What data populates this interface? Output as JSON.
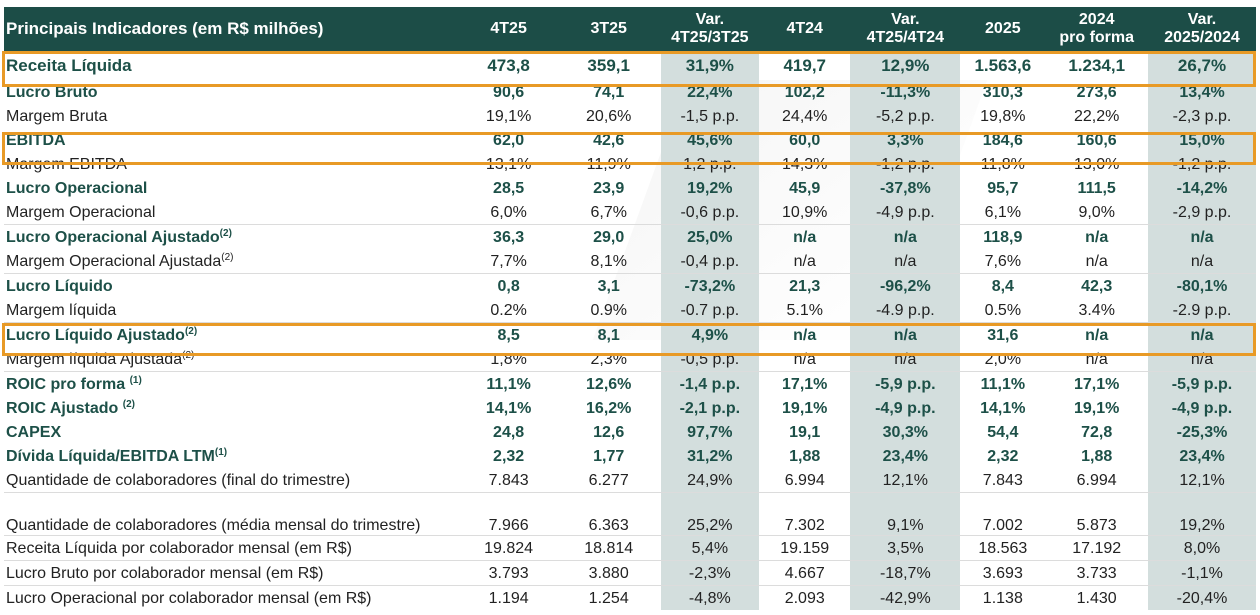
{
  "table": {
    "headers": [
      {
        "line1": "Principais Indicadores (em R$ milhões)",
        "line2": ""
      },
      {
        "line1": "4T25",
        "line2": ""
      },
      {
        "line1": "3T25",
        "line2": ""
      },
      {
        "line1": "Var.",
        "line2": "4T25/3T25"
      },
      {
        "line1": "4T24",
        "line2": ""
      },
      {
        "line1": "Var.",
        "line2": "4T25/4T24"
      },
      {
        "line1": "2025",
        "line2": ""
      },
      {
        "line1": "2024",
        "line2": "pro forma"
      },
      {
        "line1": "Var.",
        "line2": "2025/2024"
      }
    ],
    "rows": [
      {
        "label": "Receita Líquida",
        "sup": "",
        "values": [
          "473,8",
          "359,1",
          "31,9%",
          "419,7",
          "12,9%",
          "1.563,6",
          "1.234,1",
          "26,7%"
        ]
      },
      {
        "label": "Lucro Bruto",
        "sup": "",
        "values": [
          "90,6",
          "74,1",
          "22,4%",
          "102,2",
          "-11,3%",
          "310,3",
          "273,6",
          "13,4%"
        ]
      },
      {
        "label": "Margem Bruta",
        "sup": "",
        "values": [
          "19,1%",
          "20,6%",
          "-1,5 p.p.",
          "24,4%",
          "-5,2 p.p.",
          "19,8%",
          "22,2%",
          "-2,3 p.p."
        ]
      },
      {
        "label": "EBITDA",
        "sup": "",
        "values": [
          "62,0",
          "42,6",
          "45,6%",
          "60,0",
          "3,3%",
          "184,6",
          "160,6",
          "15,0%"
        ]
      },
      {
        "label": "Margem EBITDA",
        "sup": "",
        "values": [
          "13,1%",
          "11,9%",
          "1,2 p.p.",
          "14,3%",
          "-1,2 p.p.",
          "11,8%",
          "13,0%",
          "-1,2 p.p."
        ]
      },
      {
        "label": "Lucro Operacional",
        "sup": "",
        "values": [
          "28,5",
          "23,9",
          "19,2%",
          "45,9",
          "-37,8%",
          "95,7",
          "111,5",
          "-14,2%"
        ]
      },
      {
        "label": "Margem Operacional",
        "sup": "",
        "values": [
          "6,0%",
          "6,7%",
          "-0,6 p.p.",
          "10,9%",
          "-4,9 p.p.",
          "6,1%",
          "9,0%",
          "-2,9 p.p."
        ]
      },
      {
        "label": "Lucro Operacional Ajustado",
        "sup": "(2)",
        "values": [
          "36,3",
          "29,0",
          "25,0%",
          "n/a",
          "n/a",
          "118,9",
          "n/a",
          "n/a"
        ]
      },
      {
        "label": "Margem Operacional Ajustada",
        "sup": "(2)",
        "values": [
          "7,7%",
          "8,1%",
          "-0,4 p.p.",
          "n/a",
          "n/a",
          "7,6%",
          "n/a",
          "n/a"
        ]
      },
      {
        "label": "Lucro Líquido",
        "sup": "",
        "values": [
          "0,8",
          "3,1",
          "-73,2%",
          "21,3",
          "-96,2%",
          "8,4",
          "42,3",
          "-80,1%"
        ]
      },
      {
        "label": "Margem líquida",
        "sup": "",
        "values": [
          "0.2%",
          "0.9%",
          "-0.7 p.p.",
          "5.1%",
          "-4.9 p.p.",
          "0.5%",
          "3.4%",
          "-2.9 p.p."
        ]
      },
      {
        "label": "Lucro Líquido Ajustado",
        "sup": "(2)",
        "values": [
          "8,5",
          "8,1",
          "4,9%",
          "n/a",
          "n/a",
          "31,6",
          "n/a",
          "n/a"
        ]
      },
      {
        "label": "Margem líquida Ajustada",
        "sup": "(2)",
        "values": [
          "1,8%",
          "2,3%",
          "-0,5 p.p.",
          "n/a",
          "n/a",
          "2,0%",
          "n/a",
          "n/a"
        ]
      },
      {
        "label": "ROIC pro forma ",
        "sup": "(1)",
        "values": [
          "11,1%",
          "12,6%",
          "-1,4 p.p.",
          "17,1%",
          "-5,9 p.p.",
          "11,1%",
          "17,1%",
          "-5,9 p.p."
        ]
      },
      {
        "label": "ROIC Ajustado ",
        "sup": "(2)",
        "values": [
          "14,1%",
          "16,2%",
          "-2,1 p.p.",
          "19,1%",
          "-4,9 p.p.",
          "14,1%",
          "19,1%",
          "-4,9 p.p."
        ]
      },
      {
        "label": "CAPEX",
        "sup": "",
        "values": [
          "24,8",
          "12,6",
          "97,7%",
          "19,1",
          "30,3%",
          "54,4",
          "72,8",
          "-25,3%"
        ]
      },
      {
        "label": "Dívida Líquida/EBITDA LTM",
        "sup": "(1)",
        "values": [
          "2,32",
          "1,77",
          "31,2%",
          "1,88",
          "23,4%",
          "2,32",
          "1,88",
          "23,4%"
        ]
      },
      {
        "label": "Quantidade de colaboradores (final do trimestre)",
        "sup": "",
        "values": [
          "7.843",
          "6.277",
          "24,9%",
          "6.994",
          "12,1%",
          "7.843",
          "6.994",
          "12,1%"
        ]
      },
      {
        "label": "Quantidade de colaboradores (média mensal do trimestre)",
        "sup": "",
        "values": [
          "7.966",
          "6.363",
          "25,2%",
          "7.302",
          "9,1%",
          "7.002",
          "5.873",
          "19,2%"
        ]
      },
      {
        "label": "Receita Líquida por colaborador mensal (em R$)",
        "sup": "",
        "values": [
          "19.824",
          "18.814",
          "5,4%",
          "19.159",
          "3,5%",
          "18.563",
          "17.192",
          "8,0%"
        ]
      },
      {
        "label": "Lucro Bruto por colaborador mensal (em R$)",
        "sup": "",
        "values": [
          "3.793",
          "3.880",
          "-2,3%",
          "4.667",
          "-18,7%",
          "3.693",
          "3.733",
          "-1,1%"
        ]
      },
      {
        "label": "Lucro Operacional por colaborador mensal (em R$)",
        "sup": "",
        "values": [
          "1.194",
          "1.254",
          "-4,8%",
          "2.093",
          "-42,9%",
          "1.138",
          "1.430",
          "-20,4%"
        ]
      }
    ]
  },
  "highlighted_rows": [
    "Receita Líquida",
    "EBITDA",
    "Lucro Líquido Ajustado"
  ],
  "colors": {
    "header_bg": "#1c4d47",
    "bold_text": "#1d5048",
    "variation_shade": "#d3dedd",
    "highlight_border": "#e89a26"
  }
}
